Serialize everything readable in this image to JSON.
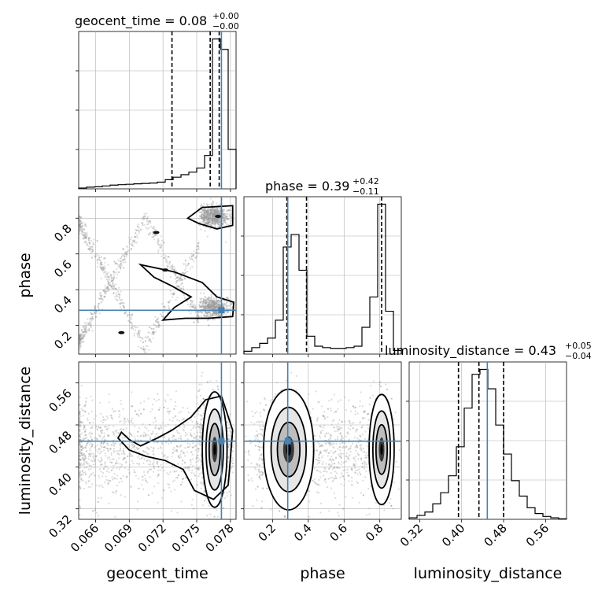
{
  "chart_data": {
    "type": "corner",
    "parameters": [
      "geocent_time",
      "phase",
      "luminosity_distance"
    ],
    "ranges": {
      "geocent_time": [
        0.0645,
        0.0785
      ],
      "phase": [
        0.04,
        0.92
      ],
      "luminosity_distance": [
        0.3,
        0.6
      ]
    },
    "truths": {
      "geocent_time": 0.0772,
      "phase": 0.285,
      "luminosity_distance": 0.449
    },
    "titles": {
      "geocent_time": {
        "label": "geocent_time = 0.08",
        "plus": "+0.00",
        "minus": "−0.00"
      },
      "phase": {
        "label": "phase = 0.39",
        "plus": "+0.42",
        "minus": "−0.11"
      },
      "luminosity_distance": {
        "label": "luminosity_distance = 0.43",
        "plus": "+0.05",
        "minus": "−0.04"
      }
    },
    "quantiles": {
      "geocent_time": [
        0.0728,
        0.0762,
        0.077
      ],
      "phase": [
        0.28,
        0.39,
        0.81
      ],
      "luminosity_distance": [
        0.394,
        0.433,
        0.48
      ]
    },
    "ticks": {
      "geocent_time": [
        "0.066",
        "0.069",
        "0.072",
        "0.075",
        "0.078"
      ],
      "phase": [
        "0.2",
        "0.4",
        "0.6",
        "0.8"
      ],
      "luminosity_distance": [
        "0.32",
        "0.40",
        "0.48",
        "0.56"
      ]
    },
    "tick_values": {
      "geocent_time": [
        0.066,
        0.069,
        0.072,
        0.075,
        0.078
      ],
      "phase": [
        0.2,
        0.4,
        0.6,
        0.8
      ],
      "luminosity_distance": [
        0.32,
        0.4,
        0.48,
        0.56
      ]
    },
    "histograms": {
      "geocent_time": {
        "edges": [
          0.0645,
          0.0652,
          0.0659,
          0.0666,
          0.0673,
          0.068,
          0.0687,
          0.0694,
          0.0701,
          0.0708,
          0.0715,
          0.0722,
          0.0729,
          0.0736,
          0.0743,
          0.075,
          0.0757,
          0.0764,
          0.0771,
          0.0778,
          0.0785
        ],
        "counts": [
          2,
          4,
          5,
          7,
          9,
          10,
          11,
          12,
          13,
          14,
          16,
          22,
          28,
          34,
          40,
          50,
          80,
          360,
          335,
          95
        ]
      },
      "phase": {
        "edges": [
          0.04,
          0.084,
          0.128,
          0.172,
          0.216,
          0.26,
          0.304,
          0.348,
          0.392,
          0.436,
          0.48,
          0.524,
          0.568,
          0.612,
          0.656,
          0.7,
          0.744,
          0.788,
          0.832,
          0.876,
          0.92
        ],
        "counts": [
          8,
          18,
          30,
          45,
          95,
          300,
          335,
          235,
          50,
          22,
          18,
          16,
          16,
          18,
          22,
          75,
          160,
          420,
          120,
          10
        ]
      },
      "luminosity_distance": {
        "edges": [
          0.3,
          0.315,
          0.33,
          0.345,
          0.36,
          0.375,
          0.39,
          0.405,
          0.42,
          0.435,
          0.45,
          0.465,
          0.48,
          0.495,
          0.51,
          0.525,
          0.54,
          0.555,
          0.57,
          0.585,
          0.6
        ],
        "counts": [
          3,
          8,
          15,
          32,
          55,
          90,
          150,
          230,
          300,
          310,
          270,
          195,
          135,
          80,
          48,
          24,
          12,
          6,
          3,
          1
        ]
      }
    }
  }
}
